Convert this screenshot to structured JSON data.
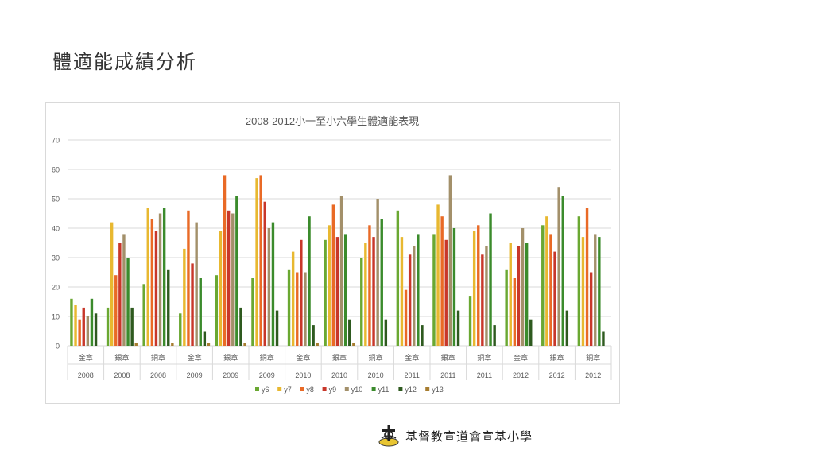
{
  "slide": {
    "title": "體適能成績分析",
    "school_name": "基督教宣道會宣基小學",
    "logo_icon": "school-crest-icon"
  },
  "chart_data": {
    "type": "bar",
    "title": "2008-2012小一至小六學生體適能表現",
    "ylim": [
      0,
      70
    ],
    "yticks": [
      0,
      10,
      20,
      30,
      40,
      50,
      60,
      70
    ],
    "grid": true,
    "legend_position": "bottom",
    "categories": [
      {
        "award": "金章",
        "year": "2008"
      },
      {
        "award": "銀章",
        "year": "2008"
      },
      {
        "award": "銅章",
        "year": "2008"
      },
      {
        "award": "金章",
        "year": "2009"
      },
      {
        "award": "銀章",
        "year": "2009"
      },
      {
        "award": "銅章",
        "year": "2009"
      },
      {
        "award": "金章",
        "year": "2010"
      },
      {
        "award": "銀章",
        "year": "2010"
      },
      {
        "award": "銅章",
        "year": "2010"
      },
      {
        "award": "金章",
        "year": "2011"
      },
      {
        "award": "銀章",
        "year": "2011"
      },
      {
        "award": "銅章",
        "year": "2011"
      },
      {
        "award": "金章",
        "year": "2012"
      },
      {
        "award": "銀章",
        "year": "2012"
      },
      {
        "award": "銅章",
        "year": "2012"
      }
    ],
    "series": [
      {
        "name": "y6",
        "color": "#6aa832",
        "values": [
          16,
          13,
          21,
          11,
          24,
          23,
          26,
          36,
          30,
          46,
          38,
          17,
          26,
          41,
          44
        ]
      },
      {
        "name": "y7",
        "color": "#e8b830",
        "values": [
          14,
          42,
          47,
          33,
          39,
          57,
          32,
          41,
          35,
          37,
          48,
          39,
          35,
          44,
          37
        ]
      },
      {
        "name": "y8",
        "color": "#e96a26",
        "values": [
          9,
          24,
          43,
          46,
          58,
          58,
          25,
          48,
          41,
          19,
          44,
          41,
          23,
          38,
          47
        ]
      },
      {
        "name": "y9",
        "color": "#c8372a",
        "values": [
          13,
          35,
          39,
          28,
          46,
          49,
          36,
          37,
          37,
          31,
          36,
          31,
          34,
          32,
          25
        ]
      },
      {
        "name": "y10",
        "color": "#a3906a",
        "values": [
          10,
          38,
          45,
          42,
          45,
          40,
          25,
          51,
          50,
          34,
          58,
          34,
          40,
          54,
          38
        ]
      },
      {
        "name": "y11",
        "color": "#3b8b2c",
        "values": [
          16,
          30,
          47,
          23,
          51,
          42,
          44,
          38,
          43,
          38,
          40,
          45,
          35,
          51,
          37
        ]
      },
      {
        "name": "y12",
        "color": "#2e5a1f",
        "values": [
          11,
          13,
          26,
          5,
          13,
          12,
          7,
          9,
          9,
          7,
          12,
          7,
          9,
          12,
          5
        ]
      },
      {
        "name": "y13",
        "color": "#a77d30",
        "values": [
          0,
          1,
          1,
          1,
          1,
          0,
          1,
          1,
          0,
          0,
          0,
          0,
          0,
          0,
          0
        ]
      }
    ]
  }
}
